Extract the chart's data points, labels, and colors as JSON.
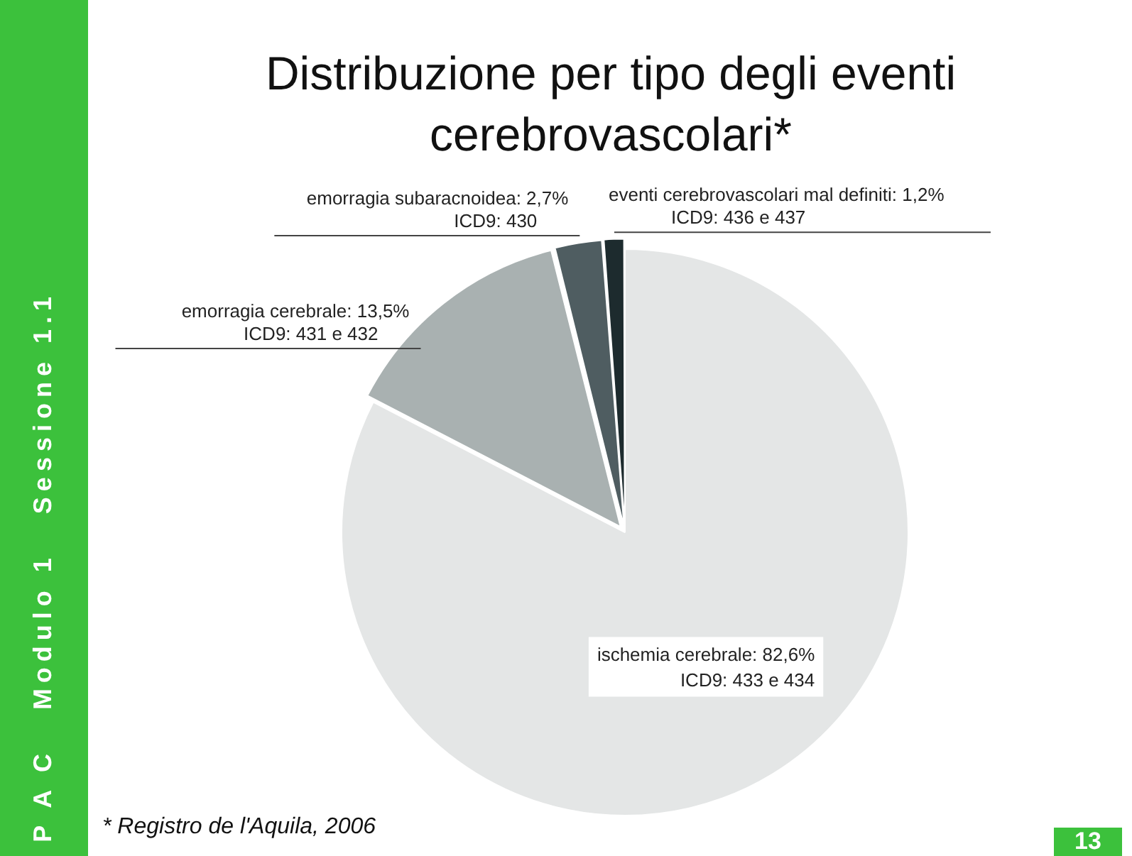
{
  "chart_data": {
    "type": "pie",
    "title": "Distribuzione per tipo degli eventi cerebrovascolari*",
    "subtitle": "P A C   Modulo 1   Sessione 1.1",
    "categories": [
      "ischemia cerebrale",
      "emorragia cerebrale",
      "emorragia subaracnoidea",
      "eventi cerebrovascolari mal definiti"
    ],
    "values": [
      82.6,
      13.5,
      2.7,
      1.2
    ],
    "value_labels": [
      "82,6%",
      "13,5%",
      "2,7%",
      "1,2%"
    ],
    "colors": [
      "#e4e6e6",
      "#a9b1b1",
      "#4f5d61",
      "#1d2b2e"
    ],
    "legend": false,
    "annotations": [
      "ICD9: 433 e 434",
      "ICD9: 431 e 432",
      "ICD9: 430",
      "ICD9: 436 e 437",
      "* Registro de l'Aquila, 2006",
      "13"
    ]
  }
}
